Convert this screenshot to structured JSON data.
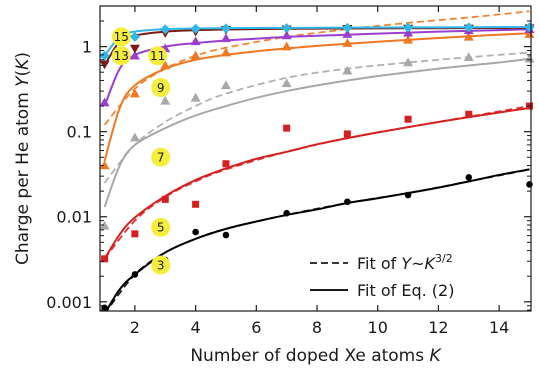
{
  "chart_data": {
    "type": "scatter",
    "xlabel": "Number of doped Xe atoms K",
    "ylabel": "Charge per He atom Y(K)",
    "xlim": [
      0.85,
      15.05
    ],
    "ylim": [
      0.00078,
      3.0
    ],
    "y_scale": "log",
    "grid": false,
    "x_ticks": [
      2,
      4,
      6,
      8,
      10,
      12,
      14
    ],
    "x_tick_labels": [
      "2",
      "4",
      "6",
      "8",
      "10",
      "12",
      "14"
    ],
    "y_ticks": [
      0.001,
      0.01,
      0.1,
      1
    ],
    "y_tick_labels": [
      "0.001",
      "0.01",
      "0.1",
      "1"
    ],
    "legend": {
      "placement": "bottom-right",
      "entries": [
        {
          "style": "dashed",
          "prefix": "Fit of ",
          "italic": "Y",
          "mid": "~",
          "italic2": "K",
          "sup": "3/2"
        },
        {
          "style": "solid",
          "label": "Fit of Eq. (2)"
        }
      ]
    },
    "series": [
      {
        "name": "3",
        "color": "#000000",
        "marker": "circle",
        "points": [
          [
            1,
            0.00085
          ],
          [
            2,
            0.0021
          ],
          [
            3,
            0.0031
          ],
          [
            4,
            0.0066
          ],
          [
            5,
            0.0061
          ],
          [
            7,
            0.011
          ],
          [
            9,
            0.015
          ],
          [
            11,
            0.018
          ],
          [
            13,
            0.029
          ],
          [
            15,
            0.024
          ]
        ],
        "fit": [
          [
            1,
            0.00072
          ],
          [
            1.5,
            0.0014
          ],
          [
            2,
            0.0021
          ],
          [
            3,
            0.0038
          ],
          [
            4,
            0.0055
          ],
          [
            5,
            0.0072
          ],
          [
            6,
            0.0088
          ],
          [
            7,
            0.0105
          ],
          [
            8,
            0.0122
          ],
          [
            9,
            0.0145
          ],
          [
            10,
            0.0165
          ],
          [
            11,
            0.019
          ],
          [
            12,
            0.022
          ],
          [
            13,
            0.026
          ],
          [
            14,
            0.031
          ],
          [
            15,
            0.036
          ]
        ],
        "dash": [
          [
            1,
            0.00072
          ],
          [
            2,
            0.0021
          ],
          [
            3,
            0.0038
          ],
          [
            4,
            0.0055
          ],
          [
            5,
            0.0072
          ],
          [
            7,
            0.0105
          ],
          [
            9,
            0.0145
          ],
          [
            11,
            0.019
          ],
          [
            13,
            0.026
          ],
          [
            15,
            0.036
          ]
        ]
      },
      {
        "name": "5",
        "color": "#d62020",
        "marker": "square",
        "points": [
          [
            1,
            0.0032
          ],
          [
            2,
            0.0063
          ],
          [
            3,
            0.016
          ],
          [
            4,
            0.014
          ],
          [
            5,
            0.042
          ],
          [
            7,
            0.11
          ],
          [
            9,
            0.094
          ],
          [
            11,
            0.14
          ],
          [
            13,
            0.16
          ],
          [
            15,
            0.2
          ]
        ],
        "fit": [
          [
            1,
            0.0032
          ],
          [
            1.5,
            0.0062
          ],
          [
            2,
            0.0098
          ],
          [
            3,
            0.0175
          ],
          [
            4,
            0.027
          ],
          [
            5,
            0.037
          ],
          [
            6,
            0.048
          ],
          [
            7,
            0.058
          ],
          [
            8,
            0.071
          ],
          [
            9,
            0.084
          ],
          [
            10,
            0.098
          ],
          [
            11,
            0.113
          ],
          [
            12,
            0.13
          ],
          [
            13,
            0.148
          ],
          [
            14,
            0.168
          ],
          [
            15,
            0.19
          ]
        ],
        "dash": [
          [
            1,
            0.0032
          ],
          [
            2,
            0.009
          ],
          [
            3,
            0.017
          ],
          [
            4,
            0.026
          ],
          [
            5,
            0.036
          ],
          [
            7,
            0.058
          ],
          [
            9,
            0.084
          ],
          [
            11,
            0.113
          ],
          [
            13,
            0.15
          ],
          [
            15,
            0.2
          ]
        ]
      },
      {
        "name": "7",
        "color": "#a8a8a8",
        "marker": "triangle-up",
        "points": [
          [
            1,
            0.0078
          ],
          [
            2,
            0.085
          ],
          [
            3,
            0.23
          ],
          [
            4,
            0.25
          ],
          [
            5,
            0.35
          ],
          [
            7,
            0.37
          ],
          [
            9,
            0.52
          ],
          [
            11,
            0.65
          ],
          [
            13,
            0.75
          ],
          [
            15,
            0.72
          ]
        ],
        "fit": [
          [
            1,
            0.013
          ],
          [
            1.5,
            0.04
          ],
          [
            2,
            0.07
          ],
          [
            3,
            0.11
          ],
          [
            4,
            0.155
          ],
          [
            5,
            0.2
          ],
          [
            6,
            0.25
          ],
          [
            7,
            0.3
          ],
          [
            8,
            0.35
          ],
          [
            9,
            0.4
          ],
          [
            10,
            0.45
          ],
          [
            11,
            0.5
          ],
          [
            12,
            0.55
          ],
          [
            13,
            0.6
          ],
          [
            14,
            0.65
          ],
          [
            15,
            0.72
          ]
        ],
        "dash": [
          [
            1,
            0.025
          ],
          [
            2,
            0.07
          ],
          [
            3,
            0.13
          ],
          [
            4,
            0.2
          ],
          [
            5,
            0.28
          ],
          [
            7,
            0.43
          ],
          [
            9,
            0.55
          ],
          [
            11,
            0.65
          ],
          [
            13,
            0.75
          ],
          [
            15,
            0.85
          ]
        ]
      },
      {
        "name": "9",
        "color": "#f07820",
        "marker": "triangle-up",
        "points": [
          [
            1,
            0.04
          ],
          [
            2,
            0.28
          ],
          [
            3,
            0.6
          ],
          [
            4,
            0.78
          ],
          [
            5,
            0.85
          ],
          [
            7,
            1.0
          ],
          [
            9,
            1.1
          ],
          [
            11,
            1.2
          ],
          [
            13,
            1.3
          ],
          [
            15,
            1.4
          ]
        ],
        "fit": [
          [
            1,
            0.045
          ],
          [
            1.5,
            0.19
          ],
          [
            2,
            0.35
          ],
          [
            3,
            0.55
          ],
          [
            4,
            0.7
          ],
          [
            5,
            0.8
          ],
          [
            6,
            0.88
          ],
          [
            7,
            0.95
          ],
          [
            8,
            1.02
          ],
          [
            9,
            1.08
          ],
          [
            10,
            1.14
          ],
          [
            11,
            1.2
          ],
          [
            12,
            1.26
          ],
          [
            13,
            1.32
          ],
          [
            14,
            1.38
          ],
          [
            15,
            1.43
          ]
        ],
        "dash": [
          [
            1,
            0.12
          ],
          [
            2,
            0.32
          ],
          [
            3,
            0.55
          ],
          [
            4,
            0.78
          ],
          [
            5,
            0.97
          ],
          [
            7,
            1.3
          ],
          [
            9,
            1.6
          ],
          [
            11,
            1.9
          ],
          [
            13,
            2.2
          ],
          [
            15,
            2.6
          ]
        ]
      },
      {
        "name": "11",
        "color": "#9b3fcf",
        "marker": "triangle-up",
        "points": [
          [
            1,
            0.22
          ],
          [
            2,
            0.78
          ],
          [
            3,
            0.95
          ],
          [
            4,
            1.15
          ],
          [
            5,
            1.25
          ],
          [
            7,
            1.35
          ],
          [
            9,
            1.4
          ],
          [
            11,
            1.45
          ],
          [
            13,
            1.55
          ],
          [
            15,
            1.6
          ]
        ],
        "fit": [
          [
            1,
            0.2
          ],
          [
            1.5,
            0.55
          ],
          [
            2,
            0.8
          ],
          [
            3,
            1.0
          ],
          [
            4,
            1.1
          ],
          [
            5,
            1.18
          ],
          [
            6,
            1.24
          ],
          [
            7,
            1.3
          ],
          [
            8,
            1.34
          ],
          [
            9,
            1.38
          ],
          [
            10,
            1.42
          ],
          [
            11,
            1.46
          ],
          [
            12,
            1.5
          ],
          [
            13,
            1.53
          ],
          [
            14,
            1.56
          ],
          [
            15,
            1.6
          ]
        ]
      },
      {
        "name": "13",
        "color": "#7a1a10",
        "marker": "triangle-down",
        "points": [
          [
            1,
            0.62
          ],
          [
            2,
            0.95
          ],
          [
            3,
            1.45
          ],
          [
            4,
            1.5
          ],
          [
            5,
            1.58
          ],
          [
            7,
            1.6
          ],
          [
            9,
            1.62
          ],
          [
            11,
            1.63
          ],
          [
            13,
            1.64
          ],
          [
            15,
            1.65
          ]
        ],
        "fit": [
          [
            1,
            0.6
          ],
          [
            1.5,
            1.15
          ],
          [
            2,
            1.35
          ],
          [
            3,
            1.5
          ],
          [
            4,
            1.56
          ],
          [
            5,
            1.59
          ],
          [
            7,
            1.62
          ],
          [
            9,
            1.63
          ],
          [
            11,
            1.64
          ],
          [
            13,
            1.65
          ],
          [
            15,
            1.66
          ]
        ]
      },
      {
        "name": "15",
        "color": "#30b8e8",
        "marker": "diamond",
        "points": [
          [
            1,
            0.78
          ],
          [
            2,
            1.3
          ],
          [
            3,
            1.6
          ],
          [
            4,
            1.62
          ],
          [
            5,
            1.64
          ],
          [
            7,
            1.65
          ],
          [
            9,
            1.66
          ],
          [
            11,
            1.67
          ],
          [
            13,
            1.68
          ],
          [
            15,
            1.69
          ]
        ],
        "fit": [
          [
            1,
            0.78
          ],
          [
            1.5,
            1.3
          ],
          [
            2,
            1.5
          ],
          [
            3,
            1.6
          ],
          [
            4,
            1.63
          ],
          [
            5,
            1.65
          ],
          [
            7,
            1.66
          ],
          [
            9,
            1.67
          ],
          [
            11,
            1.68
          ],
          [
            13,
            1.69
          ],
          [
            15,
            1.7
          ]
        ]
      }
    ],
    "annotations": [
      {
        "text": "3",
        "at": [
          2.85,
          0.0027
        ]
      },
      {
        "text": "5",
        "at": [
          2.85,
          0.0075
        ]
      },
      {
        "text": "7",
        "at": [
          2.85,
          0.05
        ]
      },
      {
        "text": "9",
        "at": [
          2.85,
          0.33
        ]
      },
      {
        "text": "11",
        "at": [
          2.75,
          0.78
        ]
      },
      {
        "text": "13",
        "at": [
          1.55,
          0.78
        ]
      },
      {
        "text": "15",
        "at": [
          1.55,
          1.3
        ]
      }
    ],
    "badge_color": "#f5ee3c"
  }
}
